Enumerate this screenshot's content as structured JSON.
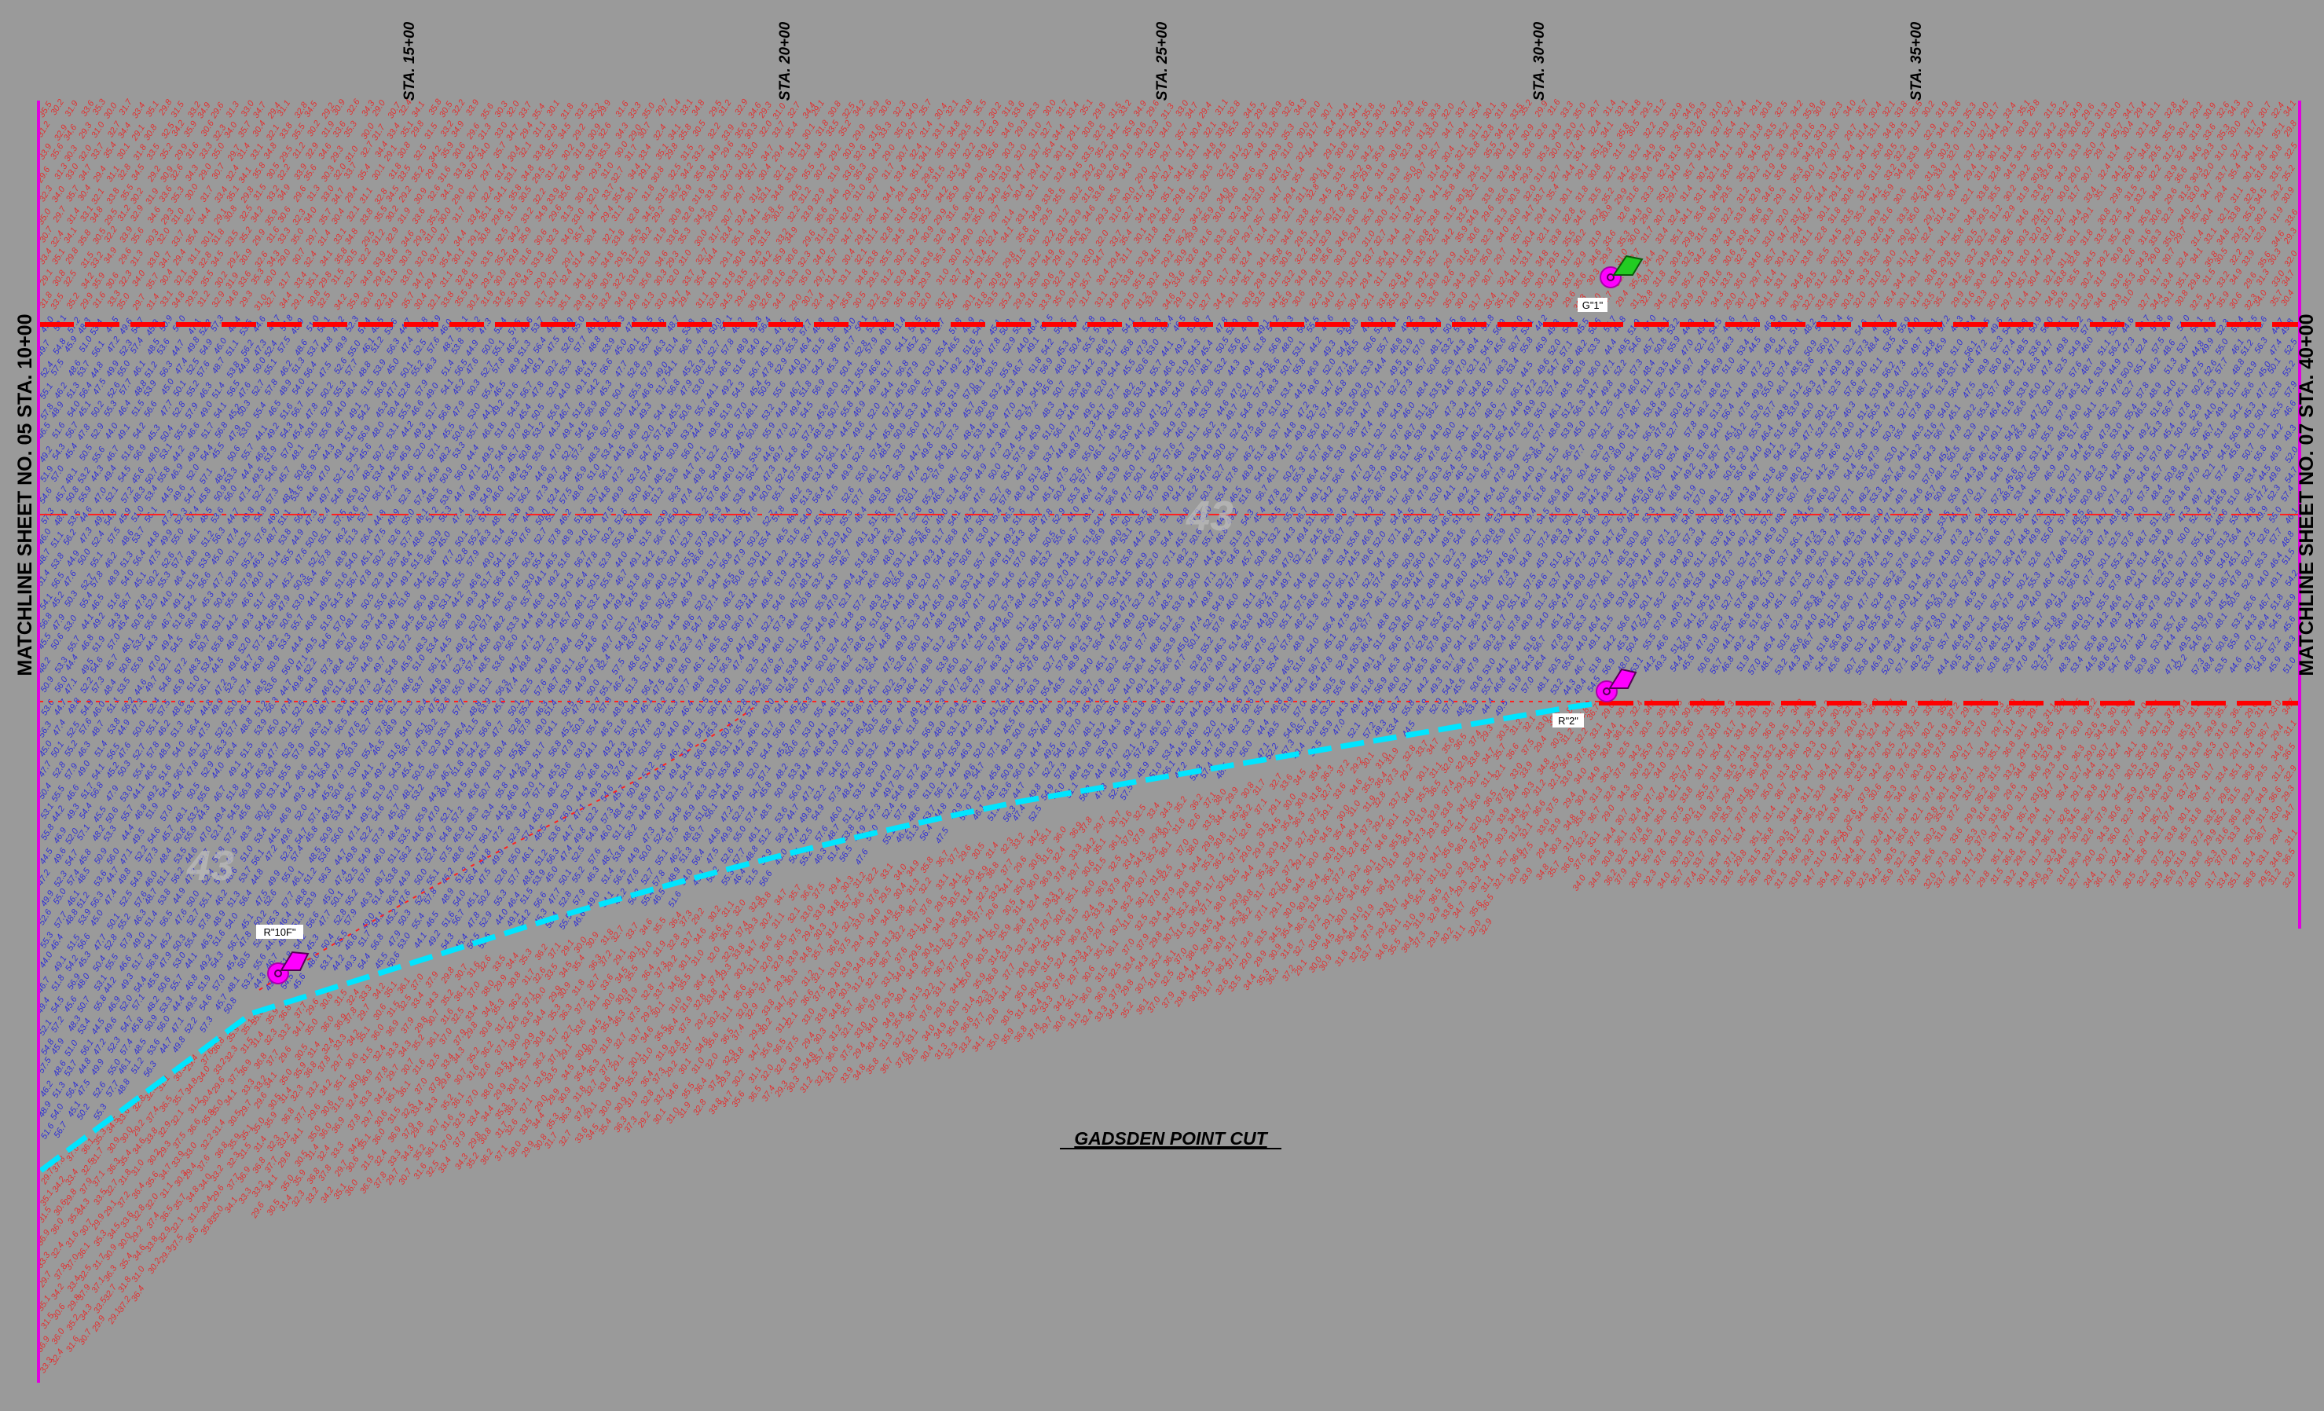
{
  "title": "GADSDEN POINT CUT",
  "stations": [
    "STA. 15+00",
    "STA. 20+00",
    "STA. 25+00",
    "STA. 30+00",
    "STA. 35+00"
  ],
  "matchlines": {
    "left": "MATCHLINE SHEET NO. 05 STA. 10+00",
    "right": "MATCHLINE SHEET NO. 07 STA. 40+00"
  },
  "markers": [
    {
      "label": "G\"1\"",
      "flag": "green-flag-icon"
    },
    {
      "label": "R\"2\"",
      "flag": "magenta-flag-icon"
    },
    {
      "label": "R\"10F\"",
      "flag": "magenta-flag-icon"
    }
  ],
  "channel_number": "43",
  "colors": {
    "background": "#9a9a9a",
    "deep_soundings": "#2e2ed6",
    "shallow_soundings": "#e23030",
    "channel_limit": "#ff0000",
    "toe_line": "#00e5ff",
    "matchline": "#e000e0",
    "marker": "#ff00ff",
    "green_marker": "#22cc22"
  }
}
